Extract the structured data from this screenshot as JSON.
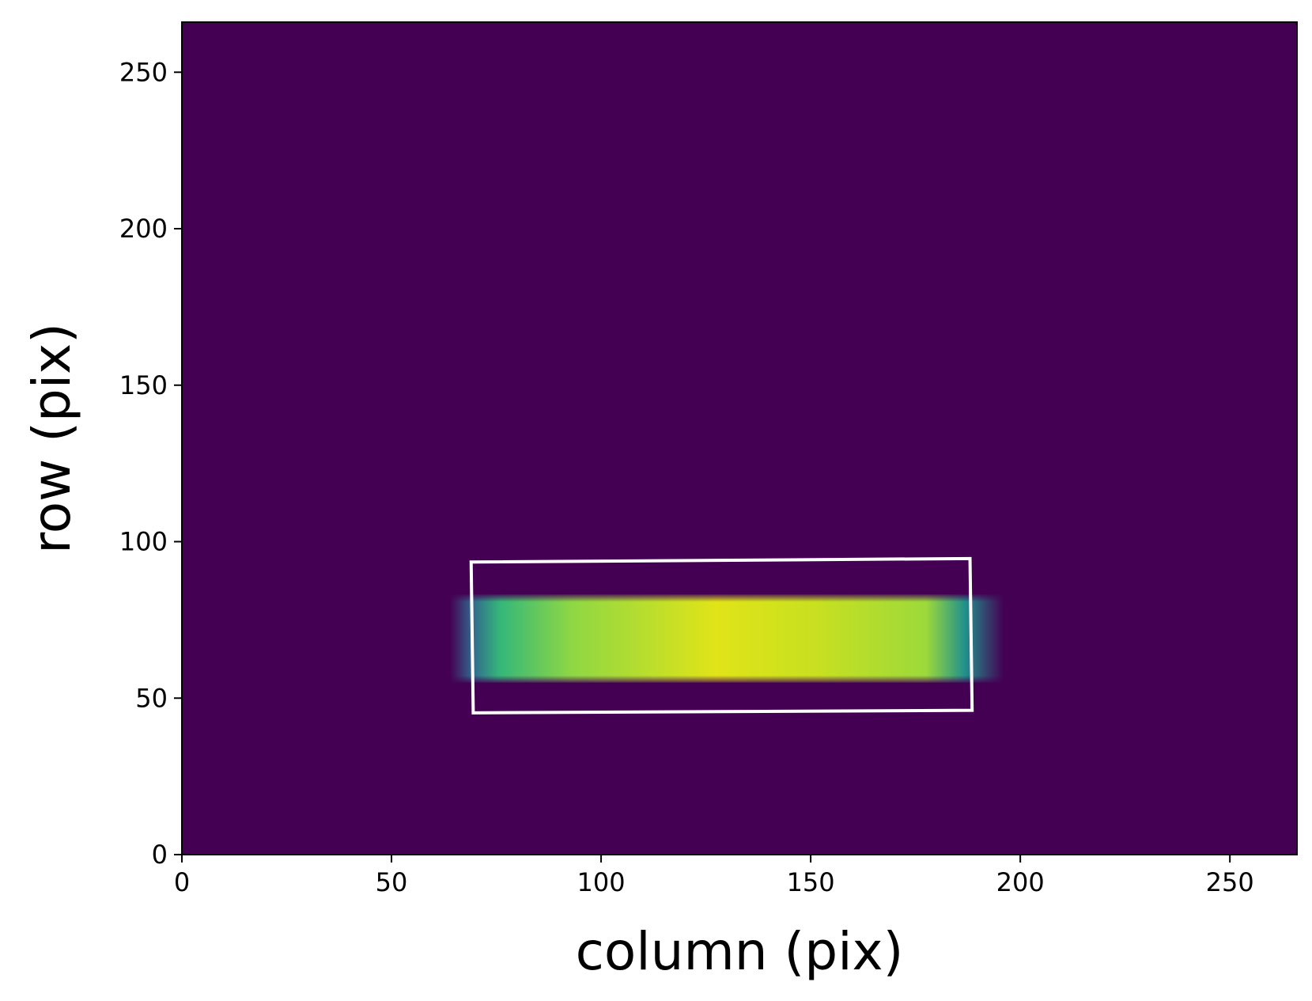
{
  "chart_data": {
    "type": "image",
    "xlabel": "column (pix)",
    "ylabel": "row (pix)",
    "xlim": [
      0,
      266
    ],
    "ylim": [
      0,
      266
    ],
    "xticks": [
      0,
      50,
      100,
      150,
      200,
      250
    ],
    "yticks": [
      0,
      50,
      100,
      150,
      200,
      250
    ],
    "background_color": "#440154",
    "bright_region": {
      "x": [
        64,
        196
      ],
      "y": [
        55,
        83
      ]
    },
    "box": {
      "color": "#ffffff",
      "x": [
        69,
        188,
        188.5,
        69.5
      ],
      "y": [
        93.5,
        94.6,
        46.1,
        45.3
      ]
    }
  }
}
